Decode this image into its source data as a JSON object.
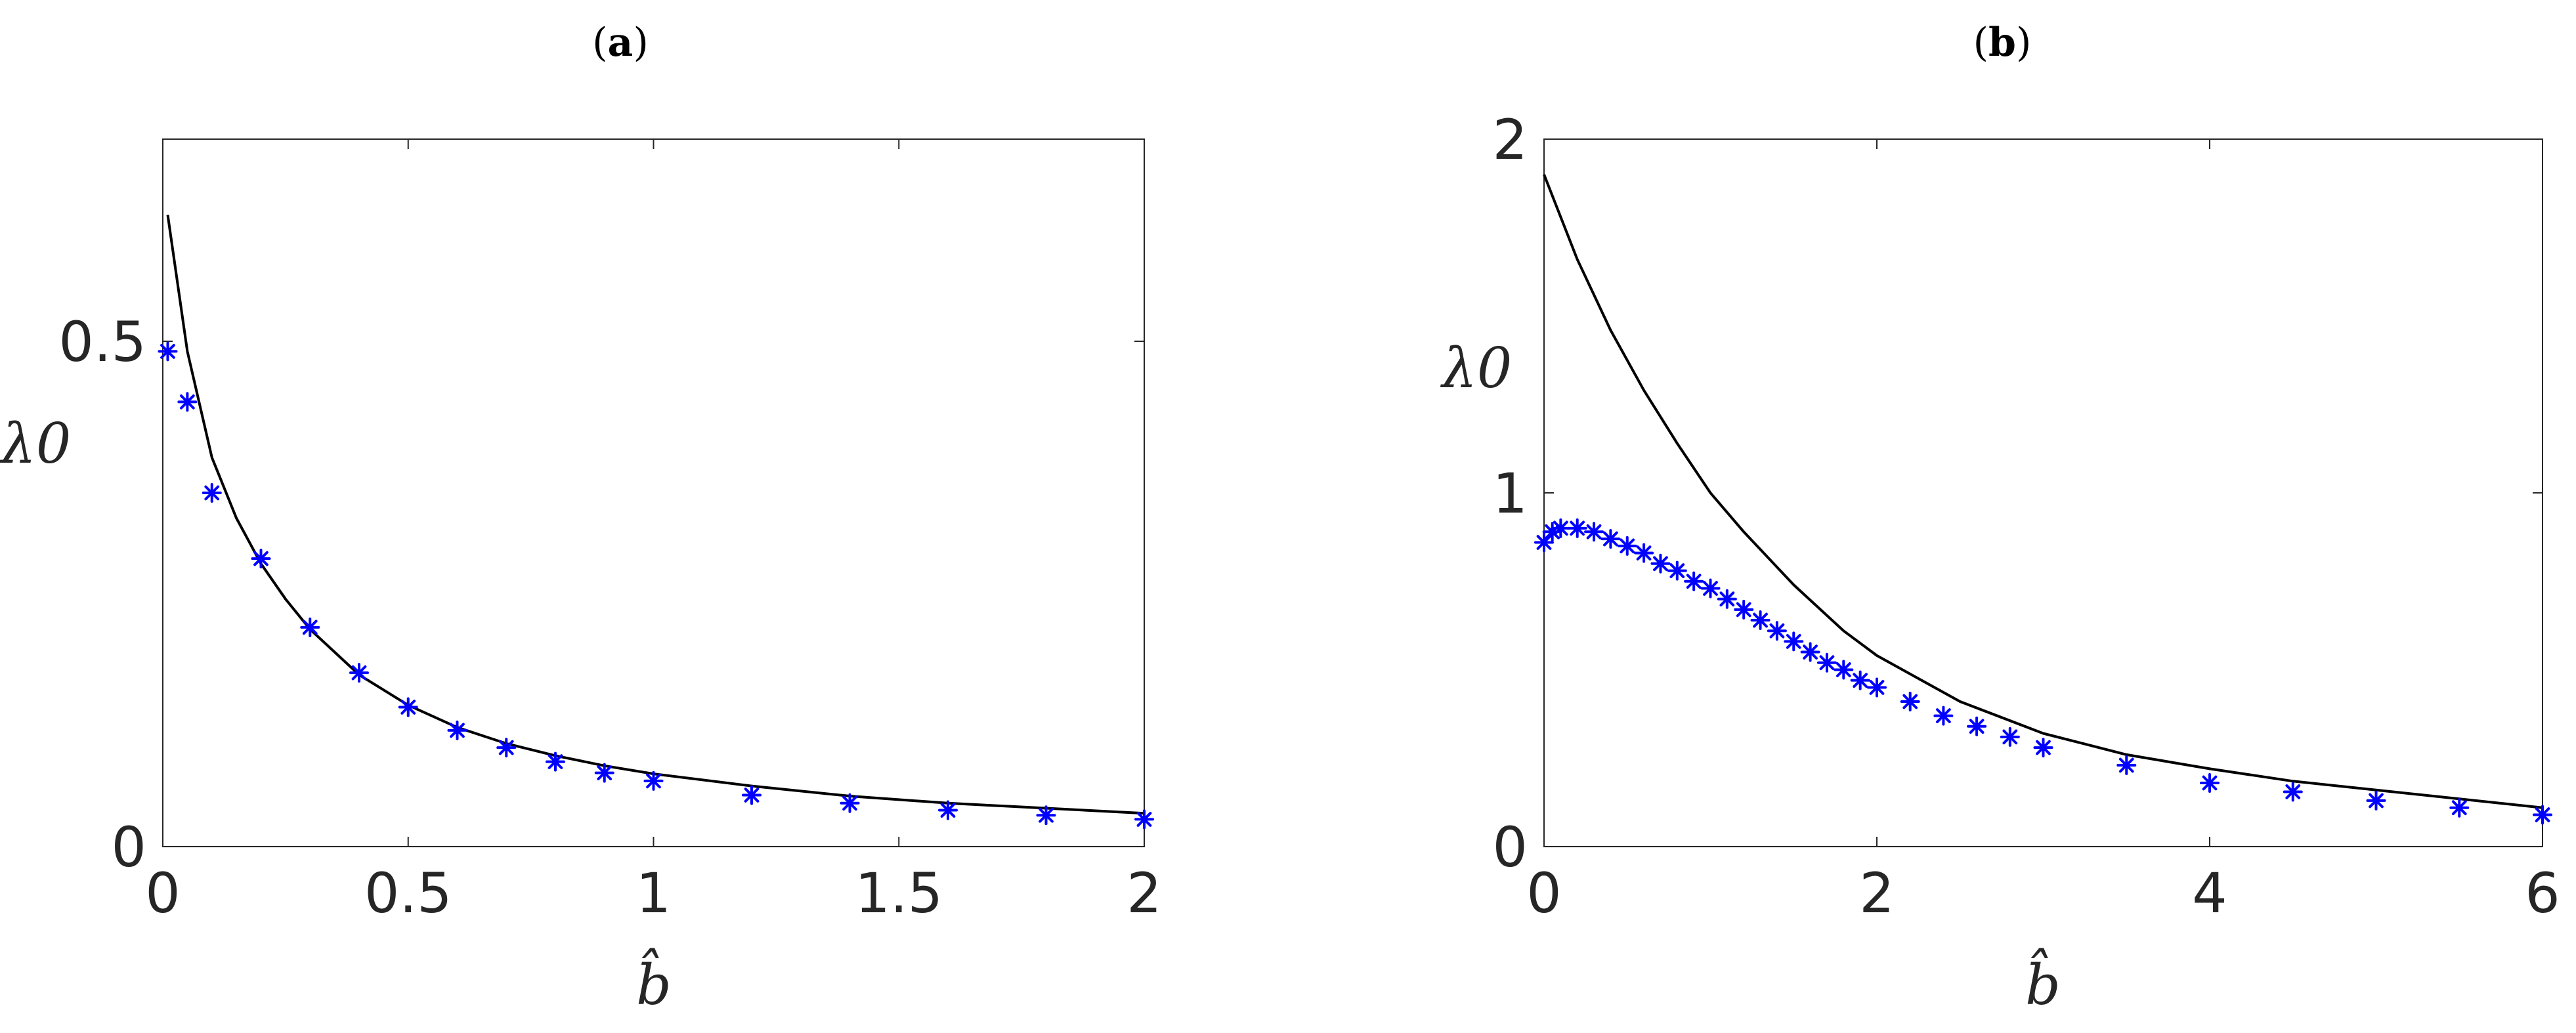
{
  "chart_data": [
    {
      "panel": "(a)",
      "type": "line",
      "xlabel": "b̂",
      "ylabel": "λ0",
      "xlim": [
        0,
        2
      ],
      "ylim": [
        0,
        0.7
      ],
      "xticks": [
        0,
        0.5,
        1,
        1.5,
        2
      ],
      "xtick_labels": [
        "0",
        "0.5",
        "1",
        "1.5",
        "2"
      ],
      "yticks": [
        0,
        0.5
      ],
      "ytick_labels": [
        "0",
        "0.5"
      ],
      "grid": false,
      "series": [
        {
          "style": "line",
          "color": "#000000",
          "x": [
            0.01,
            0.05,
            0.1,
            0.15,
            0.2,
            0.25,
            0.3,
            0.4,
            0.5,
            0.6,
            0.7,
            0.8,
            0.9,
            1.0,
            1.2,
            1.4,
            1.6,
            1.8,
            2.0
          ],
          "y": [
            0.625,
            0.49,
            0.385,
            0.325,
            0.28,
            0.245,
            0.215,
            0.17,
            0.14,
            0.118,
            0.102,
            0.09,
            0.08,
            0.072,
            0.06,
            0.05,
            0.043,
            0.038,
            0.033
          ]
        },
        {
          "style": "markers",
          "marker": "asterisk",
          "color": "#0000ff",
          "x": [
            0.01,
            0.05,
            0.1,
            0.2,
            0.3,
            0.4,
            0.5,
            0.6,
            0.7,
            0.8,
            0.9,
            1.0,
            1.2,
            1.4,
            1.6,
            1.8,
            2.0
          ],
          "y": [
            0.49,
            0.44,
            0.35,
            0.285,
            0.217,
            0.172,
            0.138,
            0.115,
            0.098,
            0.084,
            0.073,
            0.065,
            0.051,
            0.043,
            0.036,
            0.031,
            0.027
          ]
        }
      ]
    },
    {
      "panel": "(b)",
      "type": "line",
      "xlabel": "b̂",
      "ylabel": "λ0",
      "xlim": [
        0,
        6
      ],
      "ylim": [
        0,
        2
      ],
      "xticks": [
        0,
        2,
        4,
        6
      ],
      "xtick_labels": [
        "0",
        "2",
        "4",
        "6"
      ],
      "yticks": [
        0,
        1,
        2
      ],
      "ytick_labels": [
        "0",
        "1",
        "2"
      ],
      "grid": false,
      "series": [
        {
          "style": "line",
          "color": "#000000",
          "x": [
            0.0,
            0.2,
            0.4,
            0.6,
            0.8,
            1.0,
            1.2,
            1.5,
            1.8,
            2.0,
            2.5,
            3.0,
            3.5,
            4.0,
            4.5,
            5.0,
            5.5,
            6.0
          ],
          "y": [
            1.9,
            1.66,
            1.46,
            1.29,
            1.14,
            1.0,
            0.89,
            0.74,
            0.61,
            0.54,
            0.41,
            0.32,
            0.26,
            0.22,
            0.185,
            0.16,
            0.135,
            0.11
          ]
        },
        {
          "style": "markers",
          "marker": "asterisk",
          "color": "#0000ff",
          "x": [
            0.0,
            0.05,
            0.1,
            0.2,
            0.3,
            0.4,
            0.5,
            0.6,
            0.7,
            0.8,
            0.9,
            1.0,
            1.1,
            1.2,
            1.3,
            1.4,
            1.5,
            1.6,
            1.7,
            1.8,
            1.9,
            2.0,
            2.2,
            2.4,
            2.6,
            2.8,
            3.0,
            3.5,
            4.0,
            4.5,
            5.0,
            5.5,
            6.0
          ],
          "y": [
            0.86,
            0.89,
            0.9,
            0.9,
            0.89,
            0.87,
            0.85,
            0.83,
            0.8,
            0.78,
            0.75,
            0.73,
            0.7,
            0.67,
            0.64,
            0.61,
            0.58,
            0.55,
            0.52,
            0.5,
            0.47,
            0.45,
            0.41,
            0.37,
            0.34,
            0.31,
            0.28,
            0.23,
            0.18,
            0.155,
            0.13,
            0.11,
            0.09
          ]
        }
      ]
    }
  ]
}
